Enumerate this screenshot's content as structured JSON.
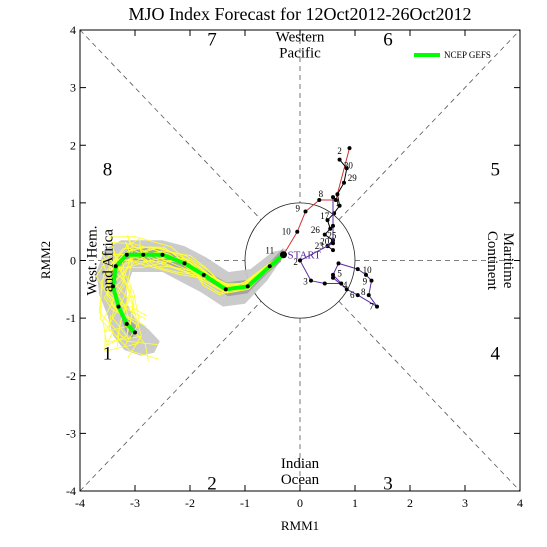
{
  "chart_data": {
    "type": "line",
    "title": "MJO Index Forecast for 12Oct2012-26Oct2012",
    "xlabel": "RMM1",
    "ylabel": "RMM2",
    "xlim": [
      -4,
      4
    ],
    "ylim": [
      -4,
      4
    ],
    "x_ticks": [
      "-4",
      "-3",
      "-2",
      "-1",
      "0",
      "1",
      "2",
      "3",
      "4"
    ],
    "y_ticks": [
      "-4",
      "-3",
      "-2",
      "-1",
      "0",
      "1",
      "2",
      "3",
      "4"
    ],
    "grid": false,
    "legend": {
      "position": "top-right",
      "entries": [
        {
          "name": "NCEP GEFS",
          "color": "#00ff00"
        }
      ]
    },
    "phase_numbers": [
      {
        "label": "1",
        "x": -3.5,
        "y": -1.6
      },
      {
        "label": "2",
        "x": -1.6,
        "y": -3.85
      },
      {
        "label": "3",
        "x": 1.6,
        "y": -3.85
      },
      {
        "label": "4",
        "x": 3.55,
        "y": -1.6
      },
      {
        "label": "5",
        "x": 3.55,
        "y": 1.6
      },
      {
        "label": "6",
        "x": 1.6,
        "y": 3.85
      },
      {
        "label": "7",
        "x": -1.6,
        "y": 3.85
      },
      {
        "label": "8",
        "x": -3.5,
        "y": 1.6
      }
    ],
    "region_labels": [
      {
        "lines": [
          "Western",
          "Pacific"
        ],
        "x": 0,
        "y": 3.75,
        "rotate": 0
      },
      {
        "lines": [
          "Indian",
          "Ocean"
        ],
        "x": 0,
        "y": -3.65,
        "rotate": 0
      },
      {
        "lines": [
          "West. Hem.",
          "and Africa"
        ],
        "x": -3.65,
        "y": 0,
        "rotate": -90
      },
      {
        "lines": [
          "Maritime",
          "Continent"
        ],
        "x": 3.65,
        "y": 0,
        "rotate": 90
      }
    ],
    "start_label": "START",
    "start_point": [
      -0.3,
      0.1
    ],
    "observed_segments": [
      {
        "color": "#d03030",
        "points": [
          [
            0.9,
            1.95
          ],
          [
            0.65,
            1.05
          ],
          [
            0.35,
            1.05
          ],
          [
            0.1,
            0.85
          ],
          [
            -0.05,
            0.5
          ],
          [
            -0.3,
            0.1
          ]
        ],
        "day_labels": [
          {
            "text": "8",
            "x": 0.38,
            "y": 1.1
          },
          {
            "text": "9",
            "x": -0.04,
            "y": 0.85
          },
          {
            "text": "10",
            "x": -0.25,
            "y": 0.45
          },
          {
            "text": "11",
            "x": -0.55,
            "y": 0.12
          }
        ]
      },
      {
        "color": "#000000",
        "points": [
          [
            0.72,
            1.75
          ],
          [
            0.85,
            1.6
          ],
          [
            0.8,
            1.35
          ],
          [
            0.68,
            1.15
          ],
          [
            0.72,
            0.95
          ],
          [
            0.62,
            0.82
          ],
          [
            0.5,
            0.7
          ],
          [
            0.55,
            0.55
          ],
          [
            0.45,
            0.45
          ],
          [
            0.6,
            0.35
          ],
          [
            0.5,
            0.25
          ],
          [
            0.6,
            0.18
          ]
        ],
        "day_labels": [
          {
            "text": "2",
            "x": 0.72,
            "y": 1.85
          },
          {
            "text": "30",
            "x": 0.88,
            "y": 1.6
          },
          {
            "text": "29",
            "x": 0.95,
            "y": 1.38
          },
          {
            "text": "1",
            "x": 0.68,
            "y": 0.95
          },
          {
            "text": "17",
            "x": 0.45,
            "y": 0.72
          },
          {
            "text": "26",
            "x": 0.28,
            "y": 0.48
          },
          {
            "text": "20",
            "x": 0.45,
            "y": 0.28
          },
          {
            "text": "23",
            "x": 0.35,
            "y": 0.2
          }
        ]
      },
      {
        "color": "#5a2ca0",
        "points": [
          [
            0.6,
            1.1
          ],
          [
            0.6,
            0.6
          ],
          [
            0.6,
            0.3
          ],
          [
            0.0,
            0.0
          ],
          [
            0.2,
            -0.35
          ],
          [
            0.45,
            -0.4
          ],
          [
            0.75,
            -0.4
          ],
          [
            0.6,
            -0.25
          ],
          [
            0.7,
            -0.05
          ],
          [
            1.05,
            -0.15
          ],
          [
            1.2,
            -0.25
          ],
          [
            1.3,
            -0.35
          ],
          [
            1.25,
            -0.6
          ],
          [
            1.4,
            -0.8
          ],
          [
            1.05,
            -0.6
          ],
          [
            0.85,
            -0.5
          ],
          [
            0.6,
            -0.3
          ]
        ],
        "day_labels": [
          {
            "text": "2",
            "x": -0.08,
            "y": -0.08
          },
          {
            "text": "3",
            "x": 0.1,
            "y": -0.42
          },
          {
            "text": "4",
            "x": 0.82,
            "y": -0.48
          },
          {
            "text": "5",
            "x": 0.72,
            "y": -0.28
          },
          {
            "text": "10",
            "x": 1.22,
            "y": -0.22
          },
          {
            "text": "9",
            "x": 1.18,
            "y": -0.42
          },
          {
            "text": "8",
            "x": 1.15,
            "y": -0.6
          },
          {
            "text": "7",
            "x": 1.3,
            "y": -0.85
          },
          {
            "text": "6",
            "x": 0.95,
            "y": -0.65
          },
          {
            "text": "25",
            "x": 0.58,
            "y": 0.38
          }
        ]
      }
    ],
    "ensemble_mean": {
      "color": "#00ff00",
      "points": [
        [
          -0.3,
          0.1
        ],
        [
          -0.55,
          -0.1
        ],
        [
          -0.95,
          -0.45
        ],
        [
          -1.35,
          -0.5
        ],
        [
          -1.75,
          -0.25
        ],
        [
          -2.1,
          -0.05
        ],
        [
          -2.5,
          0.1
        ],
        [
          -2.85,
          0.1
        ],
        [
          -3.15,
          0.1
        ],
        [
          -3.35,
          -0.1
        ],
        [
          -3.4,
          -0.45
        ],
        [
          -3.3,
          -0.8
        ],
        [
          -3.15,
          -1.1
        ],
        [
          -3.0,
          -1.25
        ]
      ]
    },
    "ensemble_spread": {
      "color": "#c8c8c8",
      "upper": [
        [
          -0.25,
          0.2
        ],
        [
          -0.5,
          0.15
        ],
        [
          -0.9,
          -0.15
        ],
        [
          -1.3,
          -0.2
        ],
        [
          -1.7,
          0.05
        ],
        [
          -2.1,
          0.25
        ],
        [
          -2.5,
          0.35
        ],
        [
          -2.9,
          0.35
        ],
        [
          -3.25,
          0.35
        ],
        [
          -3.55,
          0.2
        ],
        [
          -3.7,
          -0.2
        ],
        [
          -3.65,
          -0.6
        ],
        [
          -3.5,
          -0.95
        ],
        [
          -3.4,
          -1.3
        ],
        [
          -3.2,
          -1.55
        ],
        [
          -2.9,
          -1.65
        ]
      ],
      "lower": [
        [
          -0.35,
          0.0
        ],
        [
          -0.6,
          -0.35
        ],
        [
          -1.0,
          -0.75
        ],
        [
          -1.4,
          -0.8
        ],
        [
          -1.8,
          -0.55
        ],
        [
          -2.2,
          -0.35
        ],
        [
          -2.5,
          -0.2
        ],
        [
          -2.8,
          -0.2
        ],
        [
          -3.05,
          -0.2
        ],
        [
          -3.15,
          -0.45
        ],
        [
          -3.15,
          -0.75
        ],
        [
          -3.0,
          -1.0
        ],
        [
          -2.75,
          -1.2
        ],
        [
          -2.55,
          -1.4
        ],
        [
          -2.65,
          -1.6
        ]
      ]
    },
    "ensemble_members": {
      "color": "#ffff33",
      "count": 20
    }
  }
}
